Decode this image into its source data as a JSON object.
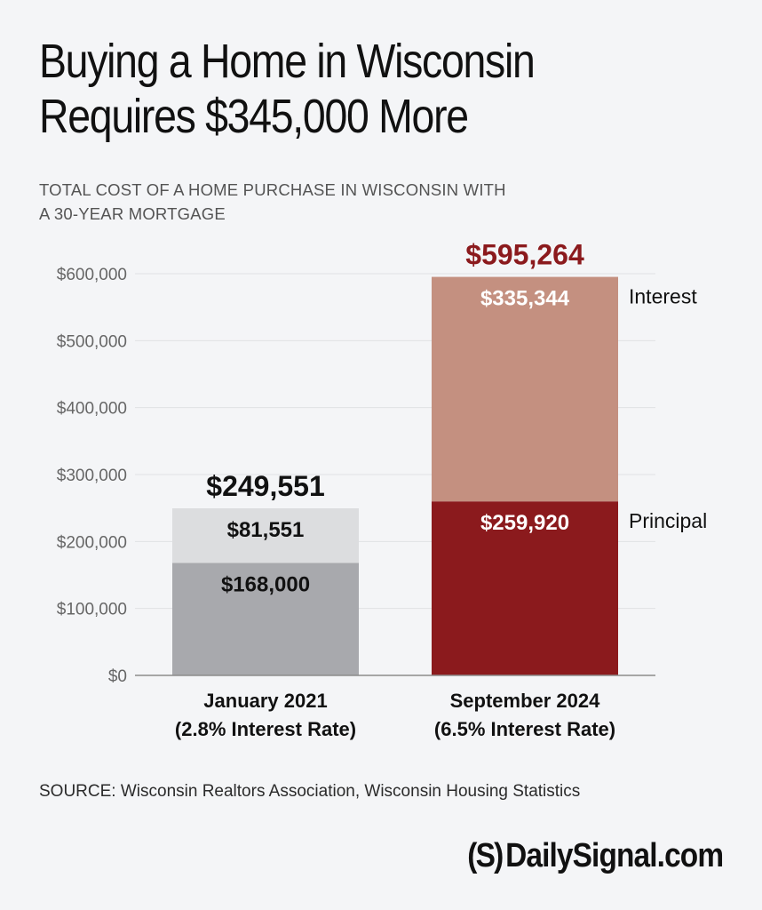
{
  "header": {
    "title_line1": "Buying a Home in Wisconsin",
    "title_line2": "Requires $345,000 More",
    "subtitle_line1": "TOTAL COST OF A HOME PURCHASE IN WISCONSIN WITH",
    "subtitle_line2": "A 30-YEAR MORTGAGE"
  },
  "footer": {
    "source": "SOURCE: Wisconsin Realtors Association, Wisconsin Housing Statistics",
    "logo_mark": "(S)",
    "logo_text": "DailySignal.com"
  },
  "chart_data": {
    "type": "bar",
    "stacked": true,
    "title": "Buying a Home in Wisconsin Requires $345,000 More",
    "ylim": [
      0,
      600000
    ],
    "yticks": [
      0,
      100000,
      200000,
      300000,
      400000,
      500000,
      600000
    ],
    "ytick_labels": [
      "$0",
      "$100,000",
      "$200,000",
      "$300,000",
      "$400,000",
      "$500,000",
      "$600,000"
    ],
    "categories": [
      {
        "line1": "January 2021",
        "line2": "(2.8% Interest Rate)"
      },
      {
        "line1": "September 2024",
        "line2": "(6.5% Interest Rate)"
      }
    ],
    "series": [
      {
        "name": "Principal",
        "values": [
          168000,
          259920
        ],
        "value_labels": [
          "$168,000",
          "$259,920"
        ],
        "colors": [
          "#a8a9ad",
          "#8b1a1d"
        ],
        "label_colors": [
          "#111111",
          "#ffffff"
        ]
      },
      {
        "name": "Interest",
        "values": [
          81551,
          335344
        ],
        "value_labels": [
          "$81,551",
          "$335,344"
        ],
        "colors": [
          "#dcdddf",
          "#c49080"
        ],
        "label_colors": [
          "#111111",
          "#ffffff"
        ]
      }
    ],
    "totals": [
      249551,
      595264
    ],
    "total_labels": [
      "$249,551",
      "$595,264"
    ],
    "total_colors": [
      "#111111",
      "#8b1a1d"
    ],
    "legend_placement": "right of second bar"
  }
}
